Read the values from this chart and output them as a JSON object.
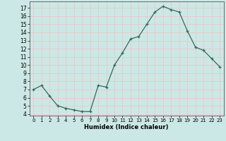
{
  "x": [
    0,
    1,
    2,
    3,
    4,
    5,
    6,
    7,
    8,
    9,
    10,
    11,
    12,
    13,
    14,
    15,
    16,
    17,
    18,
    19,
    20,
    21,
    22,
    23
  ],
  "y": [
    7.0,
    7.5,
    6.2,
    5.0,
    4.7,
    4.5,
    4.3,
    4.3,
    7.5,
    7.3,
    10.0,
    11.5,
    13.2,
    13.5,
    15.0,
    16.5,
    17.2,
    16.8,
    16.5,
    14.2,
    12.2,
    11.8,
    10.8,
    9.8
  ],
  "xlabel": "Humidex (Indice chaleur)",
  "xlim": [
    -0.5,
    23.5
  ],
  "ylim": [
    3.8,
    17.8
  ],
  "yticks": [
    4,
    5,
    6,
    7,
    8,
    9,
    10,
    11,
    12,
    13,
    14,
    15,
    16,
    17
  ],
  "xticks": [
    0,
    1,
    2,
    3,
    4,
    5,
    6,
    7,
    8,
    9,
    10,
    11,
    12,
    13,
    14,
    15,
    16,
    17,
    18,
    19,
    20,
    21,
    22,
    23
  ],
  "line_color": "#2e6b5e",
  "bg_color": "#cce8e6",
  "grid_color": "#e8c8c8"
}
